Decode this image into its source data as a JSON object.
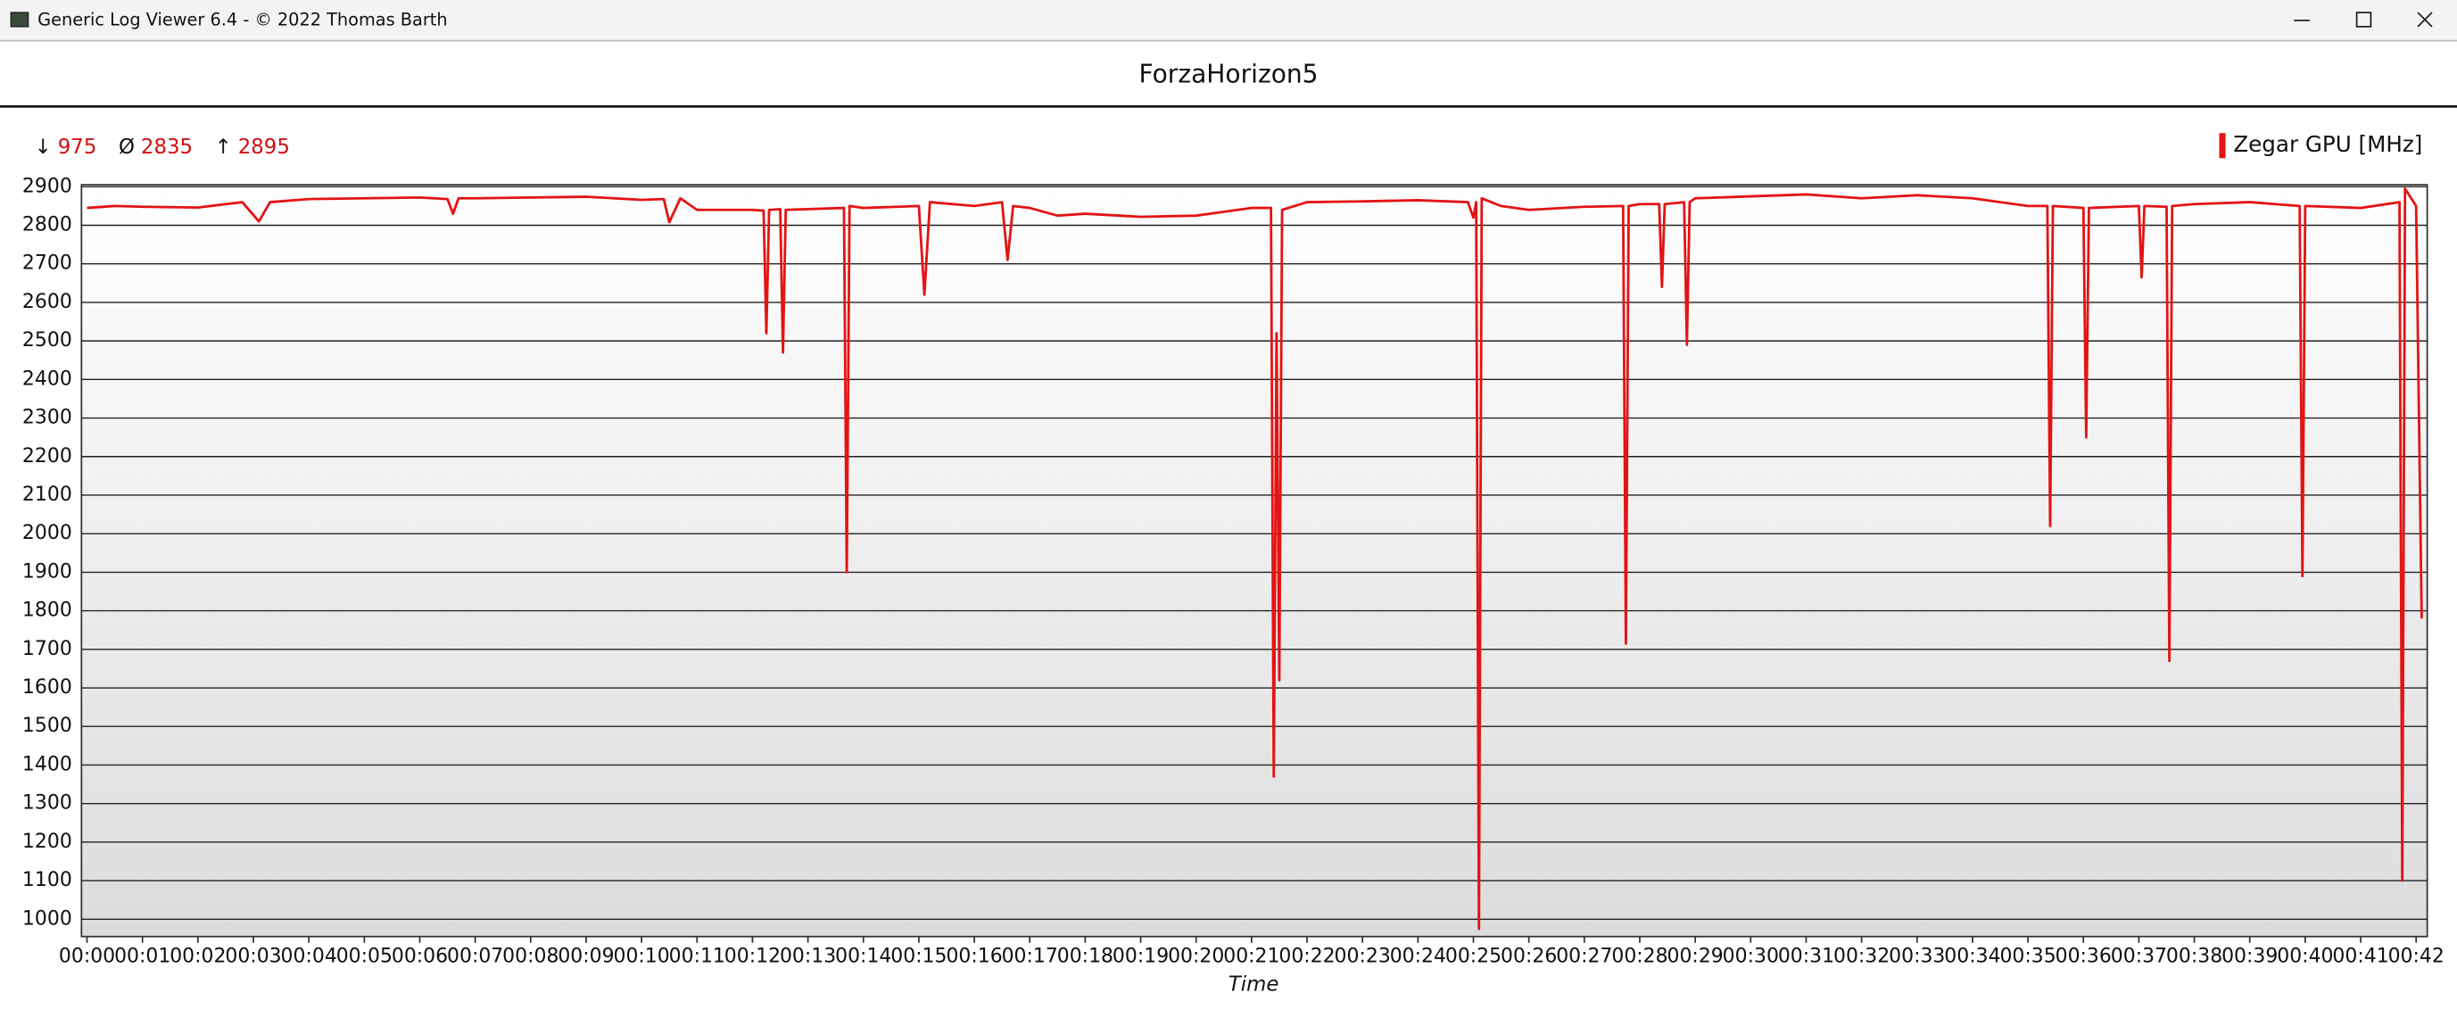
{
  "window": {
    "title": "Generic Log Viewer 6.4 - © 2022 Thomas Barth"
  },
  "chart_data": {
    "type": "line",
    "title": "ForzaHorizon5",
    "x_label": "Time",
    "stats": [
      {
        "symbol": "↓",
        "value": 975
      },
      {
        "symbol": "Ø",
        "value": 2835
      },
      {
        "symbol": "↑",
        "value": 2895
      }
    ],
    "x": [
      0,
      0.5,
      1,
      2,
      2.8,
      3.1,
      3.3,
      4,
      5,
      6,
      6.5,
      6.6,
      6.7,
      7,
      8,
      9,
      10,
      10.4,
      10.5,
      10.7,
      11,
      12,
      12.2,
      12.25,
      12.3,
      12.5,
      12.55,
      12.6,
      13,
      13.65,
      13.7,
      13.75,
      14,
      15,
      15.1,
      15.2,
      16,
      16.5,
      16.6,
      16.7,
      17,
      17.5,
      18,
      19,
      20,
      20.5,
      21,
      21.35,
      21.4,
      21.45,
      21.5,
      21.55,
      22,
      23,
      24,
      24.9,
      25.0,
      25.05,
      25.1,
      25.15,
      25.5,
      26,
      27,
      27.7,
      27.75,
      27.8,
      28,
      28.35,
      28.4,
      28.45,
      28.8,
      28.85,
      28.9,
      29,
      30,
      31,
      32,
      33,
      34,
      35,
      35.35,
      35.4,
      35.45,
      36,
      36.05,
      36.1,
      37,
      37.05,
      37.1,
      37.5,
      37.55,
      37.6,
      38,
      39,
      39.9,
      39.95,
      40,
      41,
      41.7,
      41.75,
      41.8,
      42,
      42.1
    ],
    "series": [
      {
        "name": "Zegar GPU [MHz]",
        "color": "#e31414",
        "values": [
          2845,
          2850,
          2848,
          2846,
          2860,
          2810,
          2860,
          2868,
          2870,
          2872,
          2868,
          2830,
          2870,
          2870,
          2872,
          2874,
          2866,
          2868,
          2808,
          2870,
          2840,
          2840,
          2838,
          2520,
          2840,
          2842,
          2470,
          2840,
          2842,
          2845,
          1900,
          2850,
          2845,
          2850,
          2620,
          2860,
          2850,
          2860,
          2710,
          2850,
          2845,
          2825,
          2830,
          2822,
          2825,
          2835,
          2845,
          2845,
          1370,
          2520,
          1620,
          2840,
          2860,
          2862,
          2865,
          2860,
          2820,
          2860,
          975,
          2870,
          2850,
          2840,
          2848,
          2850,
          1715,
          2850,
          2855,
          2855,
          2640,
          2855,
          2860,
          2490,
          2860,
          2870,
          2875,
          2880,
          2870,
          2878,
          2870,
          2850,
          2850,
          2020,
          2850,
          2845,
          2250,
          2845,
          2850,
          2665,
          2850,
          2848,
          1670,
          2850,
          2855,
          2860,
          2850,
          1890,
          2850,
          2845,
          2860,
          1100,
          2895,
          2850,
          1780
        ]
      }
    ],
    "xlim": [
      -0.1,
      42.2
    ],
    "xticks": [
      {
        "value": 0,
        "label": "00:00"
      },
      {
        "value": 1,
        "label": "00:01"
      },
      {
        "value": 2,
        "label": "00:02"
      },
      {
        "value": 3,
        "label": "00:03"
      },
      {
        "value": 4,
        "label": "00:04"
      },
      {
        "value": 5,
        "label": "00:05"
      },
      {
        "value": 6,
        "label": "00:06"
      },
      {
        "value": 7,
        "label": "00:07"
      },
      {
        "value": 8,
        "label": "00:08"
      },
      {
        "value": 9,
        "label": "00:09"
      },
      {
        "value": 10,
        "label": "00:10"
      },
      {
        "value": 11,
        "label": "00:11"
      },
      {
        "value": 12,
        "label": "00:12"
      },
      {
        "value": 13,
        "label": "00:13"
      },
      {
        "value": 14,
        "label": "00:14"
      },
      {
        "value": 15,
        "label": "00:15"
      },
      {
        "value": 16,
        "label": "00:16"
      },
      {
        "value": 17,
        "label": "00:17"
      },
      {
        "value": 18,
        "label": "00:18"
      },
      {
        "value": 19,
        "label": "00:19"
      },
      {
        "value": 20,
        "label": "00:20"
      },
      {
        "value": 21,
        "label": "00:21"
      },
      {
        "value": 22,
        "label": "00:22"
      },
      {
        "value": 23,
        "label": "00:23"
      },
      {
        "value": 24,
        "label": "00:24"
      },
      {
        "value": 25,
        "label": "00:25"
      },
      {
        "value": 26,
        "label": "00:26"
      },
      {
        "value": 27,
        "label": "00:27"
      },
      {
        "value": 28,
        "label": "00:28"
      },
      {
        "value": 29,
        "label": "00:29"
      },
      {
        "value": 30,
        "label": "00:30"
      },
      {
        "value": 31,
        "label": "00:31"
      },
      {
        "value": 32,
        "label": "00:32"
      },
      {
        "value": 33,
        "label": "00:33"
      },
      {
        "value": 34,
        "label": "00:34"
      },
      {
        "value": 35,
        "label": "00:35"
      },
      {
        "value": 36,
        "label": "00:36"
      },
      {
        "value": 37,
        "label": "00:37"
      },
      {
        "value": 38,
        "label": "00:38"
      },
      {
        "value": 39,
        "label": "00:39"
      },
      {
        "value": 40,
        "label": "00:40"
      },
      {
        "value": 41,
        "label": "00:41"
      },
      {
        "value": 42,
        "label": "00:42"
      }
    ],
    "ylim": [
      955,
      2905
    ],
    "yticks": [
      1000,
      1100,
      1200,
      1300,
      1400,
      1500,
      1600,
      1700,
      1800,
      1900,
      2000,
      2100,
      2200,
      2300,
      2400,
      2500,
      2600,
      2700,
      2800,
      2900
    ],
    "grid": true
  }
}
